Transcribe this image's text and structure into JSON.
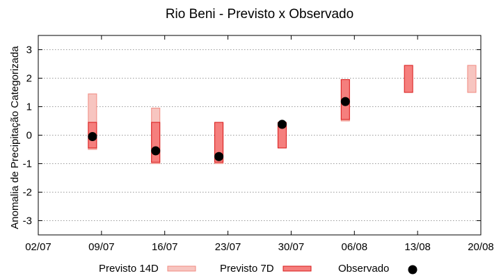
{
  "chart_data": {
    "type": "scatter",
    "title": "Rio Beni - Previsto x Observado",
    "xlabel": "",
    "ylabel": "Anomalia de Precipitação Categorizada",
    "x_ticks": [
      "02/07",
      "09/07",
      "16/07",
      "23/07",
      "30/07",
      "06/08",
      "13/08",
      "20/08"
    ],
    "y_ticks": [
      3,
      2,
      1,
      0,
      -1,
      -2,
      -3
    ],
    "ylim": [
      -3.5,
      3.5
    ],
    "grid": true,
    "legend_position": "bottom",
    "series": [
      {
        "name": "Previsto 14D",
        "kind": "range-bar",
        "color": "#f7c5c0",
        "edge": "#f08a80",
        "points": [
          {
            "x": "08/07",
            "low": -0.5,
            "high": 1.45
          },
          {
            "x": "15/07",
            "low": -1.0,
            "high": 0.95
          },
          {
            "x": "22/07",
            "low": -1.0,
            "high": 0.45
          },
          {
            "x": "05/08",
            "low": 0.5,
            "high": 1.95
          },
          {
            "x": "19/08",
            "low": 1.5,
            "high": 2.45
          }
        ]
      },
      {
        "name": "Previsto 7D",
        "kind": "range-bar",
        "color": "#f57f7d",
        "edge": "#d81818",
        "points": [
          {
            "x": "08/07",
            "low": -0.45,
            "high": 0.45
          },
          {
            "x": "15/07",
            "low": -0.95,
            "high": 0.45
          },
          {
            "x": "22/07",
            "low": -0.95,
            "high": 0.45
          },
          {
            "x": "29/07",
            "low": -0.45,
            "high": 0.45
          },
          {
            "x": "05/08",
            "low": 0.55,
            "high": 1.95
          },
          {
            "x": "12/08",
            "low": 1.5,
            "high": 2.45
          }
        ]
      },
      {
        "name": "Observado",
        "kind": "point",
        "color": "#000000",
        "points": [
          {
            "x": "08/07",
            "y": -0.05
          },
          {
            "x": "15/07",
            "y": -0.55
          },
          {
            "x": "22/07",
            "y": -0.75
          },
          {
            "x": "29/07",
            "y": 0.38
          },
          {
            "x": "05/08",
            "y": 1.18
          }
        ]
      }
    ]
  }
}
